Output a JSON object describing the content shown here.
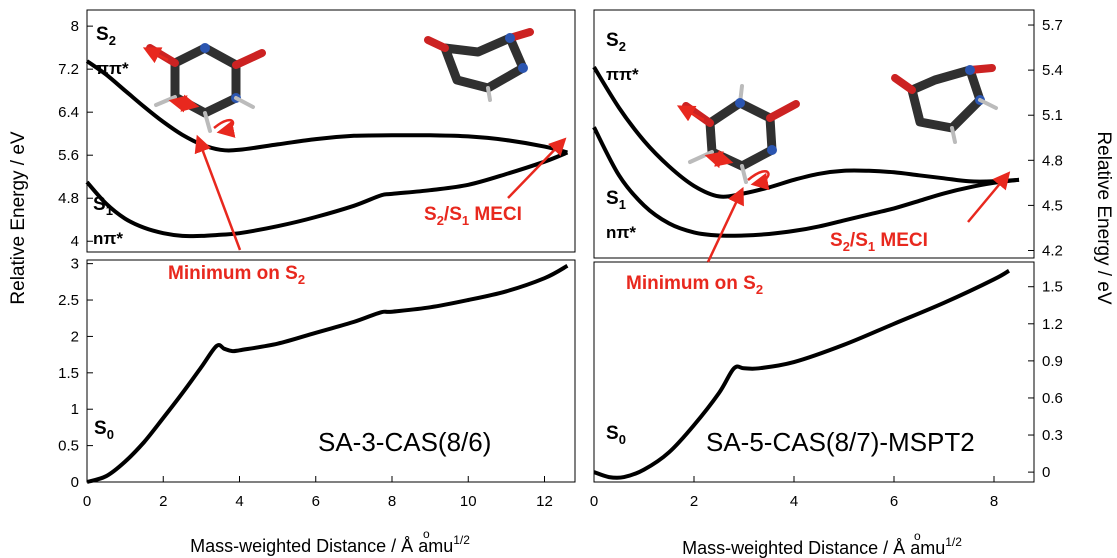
{
  "y_axis_label_left": "Relative Energy / eV",
  "y_axis_label_right": "Relative Energy / eV",
  "colors": {
    "curve": "#000000",
    "annotation": "#e8281e",
    "axis": "#000000"
  },
  "chart_data": [
    {
      "type": "line",
      "panel_label": "SA-3-CAS(8/6)",
      "xlabel": "Mass-weighted Distance / Å amu",
      "xlabel_sup": "1/2",
      "xlim": [
        0,
        12.8
      ],
      "x_ticks": [
        0,
        2,
        4,
        6,
        8,
        10,
        12
      ],
      "y_axis_side": "left",
      "broken_y_axis": true,
      "upper_ylim": [
        3.8,
        8.3
      ],
      "upper_y_ticks": [
        4,
        4.8,
        5.6,
        6.4,
        7.2,
        8
      ],
      "lower_ylim": [
        0,
        3.05
      ],
      "lower_y_ticks": [
        0,
        0.5,
        1,
        1.5,
        2,
        2.5,
        3
      ],
      "series": [
        {
          "name": "S2",
          "name_sub": "ππ*",
          "segment": "upper",
          "x": [
            0,
            0.5,
            1,
            1.5,
            2,
            2.5,
            3,
            3.5,
            4,
            5,
            6,
            7,
            8,
            9,
            10,
            11,
            12,
            12.6
          ],
          "y": [
            7.35,
            7.1,
            6.8,
            6.5,
            6.22,
            5.98,
            5.8,
            5.7,
            5.7,
            5.8,
            5.9,
            5.96,
            5.97,
            5.97,
            5.95,
            5.88,
            5.76,
            5.65
          ]
        },
        {
          "name": "S1",
          "name_sub": "nπ*",
          "segment": "upper",
          "x": [
            0,
            0.5,
            1,
            1.5,
            2,
            2.5,
            3,
            3.5,
            4,
            5,
            6,
            7,
            7.7,
            8,
            9,
            10,
            11,
            12,
            12.6
          ],
          "y": [
            5.1,
            4.7,
            4.42,
            4.25,
            4.15,
            4.1,
            4.1,
            4.12,
            4.15,
            4.28,
            4.45,
            4.66,
            4.85,
            4.88,
            4.95,
            5.05,
            5.25,
            5.48,
            5.65
          ]
        },
        {
          "name": "S0",
          "segment": "lower",
          "x": [
            0,
            0.5,
            1,
            1.5,
            2,
            2.5,
            3,
            3.4,
            3.6,
            3.8,
            4,
            5,
            6,
            7,
            7.7,
            8,
            9,
            10,
            11,
            12,
            12.6
          ],
          "y": [
            0,
            0.08,
            0.28,
            0.55,
            0.88,
            1.22,
            1.58,
            1.87,
            1.83,
            1.8,
            1.81,
            1.9,
            2.05,
            2.2,
            2.33,
            2.34,
            2.4,
            2.5,
            2.62,
            2.8,
            2.97
          ]
        }
      ],
      "annotations": [
        {
          "text": "Minimum on S",
          "sub": "2"
        },
        {
          "text": "S",
          "sub": "2",
          "text2": "/S",
          "sub2": "1",
          "text3": " MECI"
        }
      ]
    },
    {
      "type": "line",
      "panel_label": "SA-5-CAS(8/7)-MSPT2",
      "xlabel": "Mass-weighted Distance / Å amu",
      "xlabel_sup": "1/2",
      "xlim": [
        0,
        8.8
      ],
      "x_ticks": [
        0,
        2,
        4,
        6,
        8
      ],
      "y_axis_side": "right",
      "broken_y_axis": true,
      "upper_ylim": [
        4.15,
        5.8
      ],
      "upper_y_ticks": [
        4.2,
        4.5,
        4.8,
        5.1,
        5.4,
        5.7
      ],
      "lower_ylim": [
        -0.08,
        1.7
      ],
      "lower_y_ticks": [
        0,
        0.3,
        0.6,
        0.9,
        1.2,
        1.5
      ],
      "series": [
        {
          "name": "S2",
          "name_sub": "ππ*",
          "segment": "upper",
          "x": [
            0,
            0.5,
            1,
            1.5,
            2,
            2.5,
            3,
            3.5,
            4,
            4.5,
            5,
            5.5,
            6,
            6.5,
            7,
            7.5,
            8,
            8.5
          ],
          "y": [
            5.42,
            5.15,
            4.93,
            4.76,
            4.63,
            4.56,
            4.58,
            4.62,
            4.67,
            4.71,
            4.73,
            4.73,
            4.72,
            4.7,
            4.68,
            4.66,
            4.66,
            4.67
          ]
        },
        {
          "name": "S1",
          "name_sub": "nπ*",
          "segment": "upper",
          "x": [
            0,
            0.5,
            1,
            1.5,
            2,
            2.5,
            3,
            3.5,
            4,
            4.5,
            5,
            5.5,
            6,
            6.5,
            7,
            7.5,
            8,
            8.5
          ],
          "y": [
            5.02,
            4.7,
            4.5,
            4.38,
            4.32,
            4.3,
            4.3,
            4.31,
            4.33,
            4.36,
            4.4,
            4.44,
            4.48,
            4.53,
            4.58,
            4.62,
            4.65,
            4.67
          ]
        },
        {
          "name": "S0",
          "segment": "lower",
          "x": [
            0,
            0.3,
            0.6,
            1,
            1.5,
            2,
            2.5,
            2.8,
            3,
            3.3,
            4,
            5,
            6,
            7,
            8,
            8.3
          ],
          "y": [
            0.0,
            -0.04,
            -0.04,
            0.02,
            0.16,
            0.38,
            0.64,
            0.84,
            0.84,
            0.84,
            0.89,
            1.03,
            1.2,
            1.37,
            1.56,
            1.63
          ]
        }
      ],
      "annotations": [
        {
          "text": "Minimum on S",
          "sub": "2"
        },
        {
          "text": "S",
          "sub": "2",
          "text2": "/S",
          "sub2": "1",
          "text3": " MECI"
        }
      ]
    }
  ]
}
